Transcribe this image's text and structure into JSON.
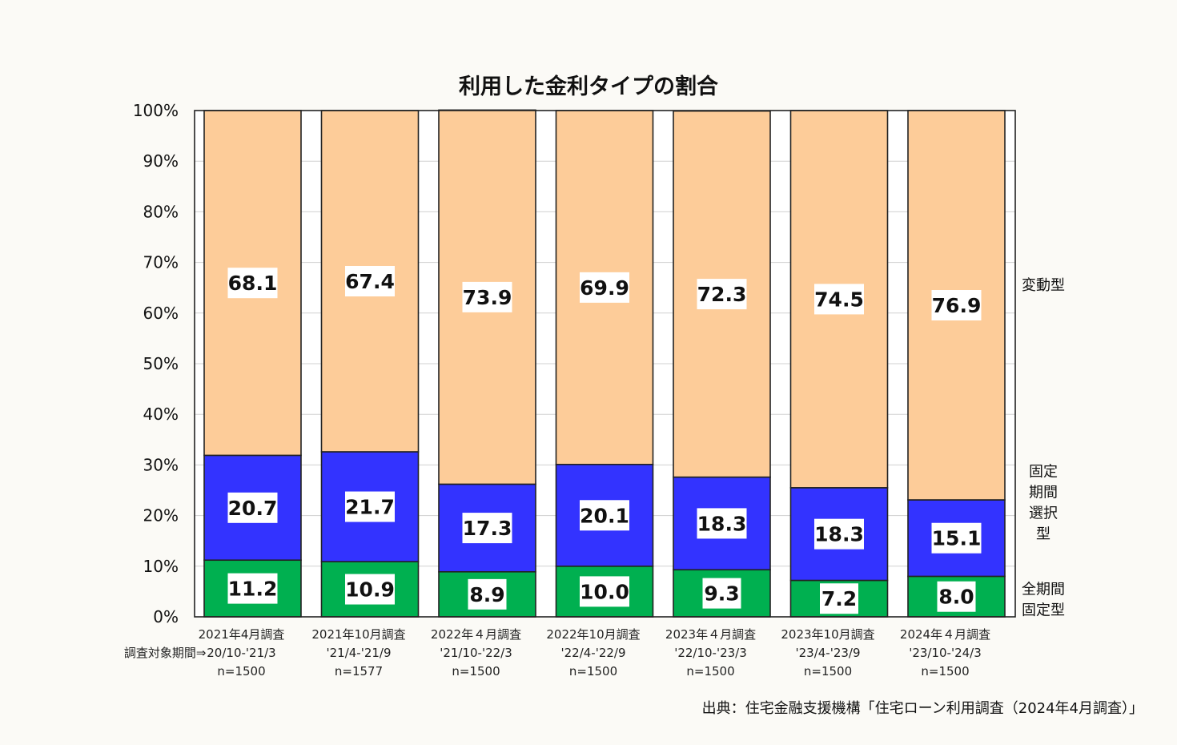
{
  "chart_data": {
    "type": "stacked-bar",
    "title": "利用した金利タイプの割合",
    "ylim": [
      0,
      100
    ],
    "yticks": [
      "0%",
      "10%",
      "20%",
      "30%",
      "40%",
      "50%",
      "60%",
      "70%",
      "80%",
      "90%",
      "100%"
    ],
    "period_label": "調査対象期間⇒",
    "categories": [
      {
        "survey": "2021年4月調査",
        "period": "20/10-'21/3",
        "n": "n=1500"
      },
      {
        "survey": "2021年10月調査",
        "period": "'21/4-'21/9",
        "n": "n=1577"
      },
      {
        "survey": "2022年４月調査",
        "period": "'21/10-'22/3",
        "n": "n=1500"
      },
      {
        "survey": "2022年10月調査",
        "period": "'22/4-'22/9",
        "n": "n=1500"
      },
      {
        "survey": "2023年４月調査",
        "period": "'22/10-'23/3",
        "n": "n=1500"
      },
      {
        "survey": "2023年10月調査",
        "period": "'23/4-'23/9",
        "n": "n=1500"
      },
      {
        "survey": "2024年４月調査",
        "period": "'23/10-'24/3",
        "n": "n=1500"
      }
    ],
    "series": [
      {
        "name": "全期間固定型",
        "legend_lines": [
          "全期間",
          "固定型"
        ],
        "color": "#00b050",
        "values": [
          11.2,
          10.9,
          8.9,
          10.0,
          9.3,
          7.2,
          8.0
        ],
        "labels": [
          "11.2",
          "10.9",
          "8.9",
          "10.0",
          "9.3",
          "7.2",
          "8.0"
        ]
      },
      {
        "name": "固定期間選択型",
        "legend_lines": [
          "固定",
          "期間",
          "選択",
          "型"
        ],
        "color": "#3333ff",
        "values": [
          20.7,
          21.7,
          17.3,
          20.1,
          18.3,
          18.3,
          15.1
        ],
        "labels": [
          "20.7",
          "21.7",
          "17.3",
          "20.1",
          "18.3",
          "18.3",
          "15.1"
        ]
      },
      {
        "name": "変動型",
        "legend_lines": [
          "変動型"
        ],
        "color": "#fdcc99",
        "values": [
          68.1,
          67.4,
          73.9,
          69.9,
          72.3,
          74.5,
          76.9
        ],
        "labels": [
          "68.1",
          "67.4",
          "73.9",
          "69.9",
          "72.3",
          "74.5",
          "76.9"
        ]
      }
    ]
  },
  "source": "出典：住宅金融支援機構「住宅ローン利用調査（2024年4月調査）」"
}
